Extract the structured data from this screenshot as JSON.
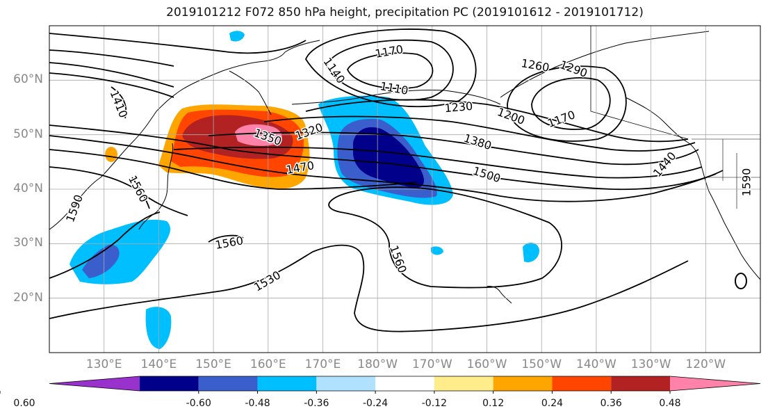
{
  "title": "2019101212 F072 850 hPa height, precipitation PC (2019101612 - 2019101712)",
  "map_extent": {
    "lon_east_min": 120,
    "lon_east_max": 250,
    "lat_min": 10,
    "lat_max": 70
  },
  "latitude_labels": [
    "60°N",
    "50°N",
    "40°N",
    "30°N",
    "20°N"
  ],
  "latitude_values": [
    60,
    50,
    40,
    30,
    20
  ],
  "longitude_labels": [
    "130°E",
    "140°E",
    "150°E",
    "160°E",
    "170°E",
    "180°W",
    "170°W",
    "160°W",
    "150°W",
    "140°W",
    "130°W",
    "120°W"
  ],
  "longitude_values": [
    130,
    140,
    150,
    160,
    170,
    180,
    190,
    200,
    210,
    220,
    230,
    240
  ],
  "contour_labels": [
    "1410",
    "1140",
    "1170",
    "1110",
    "1260",
    "1290",
    "1230",
    "1200",
    "1170",
    "1320",
    "1350",
    "1380",
    "1470",
    "1500",
    "1440",
    "1560",
    "1590",
    "1590",
    "1560",
    "1530",
    "1560"
  ],
  "colorbar": {
    "colors": [
      "#9932cc",
      "#00008b",
      "#3a5fcd",
      "#00bfff",
      "#b0e2ff",
      "#ffffff",
      "#ffec8b",
      "#ffa500",
      "#ff4500",
      "#b22222",
      "#ff82ab"
    ],
    "ticks": [
      "-0.60",
      "-0.48",
      "-0.36",
      "-0.24",
      "-0.12",
      "0.12",
      "0.24",
      "0.36",
      "0.48",
      "0.60"
    ]
  },
  "shading_colors": {
    "light_blue": "#00bfff",
    "medium_blue": "#3a5fcd",
    "dark_blue": "#00008b",
    "yellow": "#ffa500",
    "orange_red": "#ff4500",
    "dark_red": "#b22222",
    "pink": "#ff82ab"
  }
}
